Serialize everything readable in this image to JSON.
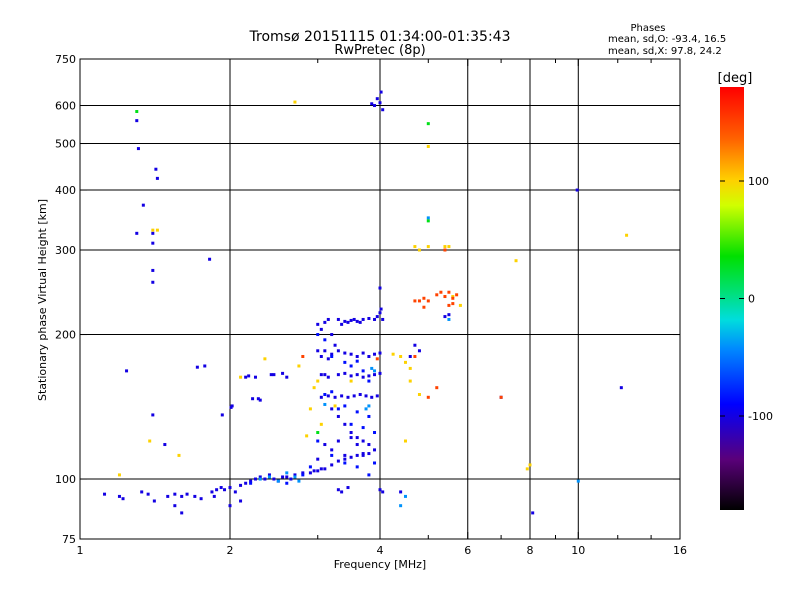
{
  "chart_data": {
    "type": "scatter",
    "title": "Tromsø 20151115 01:34:00-01:35:43",
    "subtitle": "RwPretec (8p)",
    "xlabel": "Frequency [MHz]",
    "ylabel": "Stationary phase Virtual Height [km]",
    "x_scale": "log2",
    "y_scale": "log",
    "xlim": [
      1,
      16
    ],
    "ylim": [
      75,
      750
    ],
    "x_ticks": [
      1,
      2,
      4,
      6,
      8,
      10,
      16
    ],
    "x_minor_ticks": [
      3,
      5,
      7,
      9,
      12,
      14
    ],
    "y_ticks": [
      75,
      100,
      200,
      300,
      400,
      500,
      600,
      750
    ],
    "x_grid": [
      2,
      4,
      6,
      8,
      10
    ],
    "y_grid": [
      100,
      200,
      300,
      400,
      500,
      600
    ],
    "grid": true,
    "phases_box": {
      "title": "Phases",
      "line1": "mean, sd,O:  -93.4, 16.5",
      "line2": "mean, sd,X:  97.8, 24.2"
    },
    "colorbar": {
      "label": "[deg]",
      "range": [
        -180,
        180
      ],
      "ticks": [
        -100,
        0,
        100
      ],
      "tick_labels": [
        "-100",
        "0",
        "100"
      ],
      "colormap": "rainbow"
    },
    "series": [
      {
        "color_phase": -100,
        "points": [
          [
            1.12,
            93
          ],
          [
            1.2,
            92
          ],
          [
            1.22,
            91
          ],
          [
            1.33,
            94
          ],
          [
            1.37,
            93
          ],
          [
            1.41,
            90
          ],
          [
            1.5,
            92
          ],
          [
            1.55,
            93
          ],
          [
            1.6,
            92
          ],
          [
            1.64,
            93
          ],
          [
            1.7,
            92
          ],
          [
            1.75,
            91
          ],
          [
            1.84,
            94
          ],
          [
            1.86,
            92
          ],
          [
            1.88,
            95
          ],
          [
            1.92,
            96
          ],
          [
            1.95,
            95
          ],
          [
            2.0,
            96
          ],
          [
            2.05,
            94
          ],
          [
            2.1,
            97
          ],
          [
            2.15,
            98
          ],
          [
            2.2,
            99
          ],
          [
            2.25,
            100
          ],
          [
            2.3,
            101
          ],
          [
            2.35,
            100
          ],
          [
            2.4,
            102
          ],
          [
            2.45,
            100
          ],
          [
            2.5,
            99
          ],
          [
            2.55,
            101
          ],
          [
            2.6,
            101
          ],
          [
            2.65,
            100
          ],
          [
            2.7,
            102
          ],
          [
            2.8,
            103
          ],
          [
            2.9,
            103
          ],
          [
            2.95,
            104
          ],
          [
            3.0,
            104
          ],
          [
            3.05,
            105
          ],
          [
            3.1,
            105
          ],
          [
            3.2,
            107
          ],
          [
            3.3,
            109
          ],
          [
            3.4,
            110
          ],
          [
            3.5,
            111
          ],
          [
            3.6,
            112
          ],
          [
            3.7,
            113
          ],
          [
            3.8,
            113
          ],
          [
            1.24,
            168
          ],
          [
            1.3,
            558
          ],
          [
            1.31,
            488
          ],
          [
            1.34,
            372
          ],
          [
            1.3,
            325
          ],
          [
            1.4,
            325
          ],
          [
            1.4,
            310
          ],
          [
            1.4,
            272
          ],
          [
            1.4,
            257
          ],
          [
            1.42,
            442
          ],
          [
            1.43,
            423
          ],
          [
            1.4,
            136
          ],
          [
            1.48,
            118
          ],
          [
            1.82,
            287
          ],
          [
            1.72,
            171
          ],
          [
            1.78,
            172
          ],
          [
            1.93,
            136
          ],
          [
            2.01,
            141
          ],
          [
            2.02,
            142
          ],
          [
            2.15,
            163
          ],
          [
            2.18,
            164
          ],
          [
            2.25,
            163
          ],
          [
            2.22,
            147
          ],
          [
            2.28,
            147
          ],
          [
            2.3,
            146
          ],
          [
            2.42,
            165
          ],
          [
            2.45,
            165
          ],
          [
            2.55,
            166
          ],
          [
            2.6,
            163
          ],
          [
            3.0,
            210
          ],
          [
            3.05,
            205
          ],
          [
            3.1,
            212
          ],
          [
            3.15,
            215
          ],
          [
            3.2,
            200
          ],
          [
            3.25,
            190
          ],
          [
            3.3,
            215
          ],
          [
            3.35,
            210
          ],
          [
            3.4,
            213
          ],
          [
            3.45,
            212
          ],
          [
            3.5,
            214
          ],
          [
            3.55,
            215
          ],
          [
            3.6,
            213
          ],
          [
            3.65,
            212
          ],
          [
            3.7,
            215
          ],
          [
            3.8,
            216
          ],
          [
            3.9,
            215
          ],
          [
            3.95,
            218
          ],
          [
            4.0,
            222
          ],
          [
            4.02,
            226
          ],
          [
            4.05,
            215
          ],
          [
            4.0,
            250
          ],
          [
            3.0,
            185
          ],
          [
            3.05,
            180
          ],
          [
            3.1,
            185
          ],
          [
            3.15,
            178
          ],
          [
            3.2,
            182
          ],
          [
            3.3,
            185
          ],
          [
            3.4,
            183
          ],
          [
            3.5,
            182
          ],
          [
            3.6,
            180
          ],
          [
            3.7,
            183
          ],
          [
            3.8,
            180
          ],
          [
            3.9,
            182
          ],
          [
            4.0,
            183
          ],
          [
            3.05,
            165
          ],
          [
            3.1,
            165
          ],
          [
            3.15,
            163
          ],
          [
            3.3,
            165
          ],
          [
            3.4,
            166
          ],
          [
            3.5,
            164
          ],
          [
            3.6,
            165
          ],
          [
            3.7,
            163
          ],
          [
            3.8,
            164
          ],
          [
            3.9,
            165
          ],
          [
            4.0,
            166
          ],
          [
            3.05,
            148
          ],
          [
            3.15,
            149
          ],
          [
            3.25,
            148
          ],
          [
            3.35,
            149
          ],
          [
            3.45,
            148
          ],
          [
            3.55,
            149
          ],
          [
            3.65,
            150
          ],
          [
            3.75,
            149
          ],
          [
            3.85,
            148
          ],
          [
            3.95,
            149
          ],
          [
            3.2,
            140
          ],
          [
            3.3,
            135
          ],
          [
            3.4,
            130
          ],
          [
            3.5,
            125
          ],
          [
            3.6,
            122
          ],
          [
            3.7,
            120
          ],
          [
            3.8,
            118
          ],
          [
            3.9,
            115
          ],
          [
            3.0,
            110
          ],
          [
            3.1,
            118
          ],
          [
            3.2,
            115
          ],
          [
            3.3,
            120
          ],
          [
            3.4,
            112
          ],
          [
            3.5,
            122
          ],
          [
            3.6,
            118
          ],
          [
            3.7,
            112
          ],
          [
            4.0,
            608
          ],
          [
            3.95,
            620
          ],
          [
            3.9,
            600
          ],
          [
            4.02,
            640
          ],
          [
            4.05,
            588
          ],
          [
            3.85,
            605
          ],
          [
            4.0,
            95
          ],
          [
            4.05,
            94
          ],
          [
            3.3,
            95
          ],
          [
            3.35,
            94
          ],
          [
            3.45,
            96
          ],
          [
            4.4,
            94
          ],
          [
            4.6,
            180
          ],
          [
            4.7,
            190
          ],
          [
            4.8,
            185
          ],
          [
            5.5,
            220
          ],
          [
            5.4,
            218
          ],
          [
            7.0,
            148
          ],
          [
            8.1,
            85
          ],
          [
            9.95,
            400
          ],
          [
            12.2,
            155
          ],
          [
            1.6,
            85
          ],
          [
            1.55,
            88
          ],
          [
            2.0,
            88
          ],
          [
            2.1,
            90
          ]
        ]
      },
      {
        "color_phase": -85,
        "points": [
          [
            3.0,
            200
          ],
          [
            3.1,
            195
          ],
          [
            3.2,
            180
          ],
          [
            3.4,
            175
          ],
          [
            3.5,
            172
          ],
          [
            3.6,
            176
          ],
          [
            3.7,
            168
          ],
          [
            3.8,
            160
          ],
          [
            3.1,
            150
          ],
          [
            3.2,
            152
          ],
          [
            3.3,
            140
          ],
          [
            3.4,
            142
          ],
          [
            3.5,
            130
          ],
          [
            3.6,
            138
          ],
          [
            3.7,
            128
          ],
          [
            3.8,
            135
          ],
          [
            3.9,
            125
          ],
          [
            3.0,
            120
          ],
          [
            3.2,
            112
          ],
          [
            3.4,
            108
          ],
          [
            3.6,
            106
          ],
          [
            3.8,
            102
          ],
          [
            3.9,
            108
          ],
          [
            2.9,
            106
          ],
          [
            2.8,
            102
          ],
          [
            2.6,
            98
          ],
          [
            2.2,
            98
          ]
        ]
      },
      {
        "color_phase": -40,
        "points": [
          [
            2.3,
            100
          ],
          [
            2.4,
            101
          ],
          [
            2.5,
            99
          ],
          [
            2.6,
            103
          ],
          [
            2.7,
            101
          ],
          [
            2.75,
            99
          ],
          [
            3.85,
            170
          ],
          [
            3.9,
            168
          ],
          [
            3.75,
            140
          ],
          [
            3.8,
            142
          ],
          [
            4.4,
            88
          ],
          [
            4.5,
            92
          ],
          [
            5.5,
            215
          ],
          [
            10.0,
            99
          ],
          [
            5.0,
            350
          ],
          [
            3.1,
            143
          ]
        ]
      },
      {
        "color_phase": 30,
        "points": [
          [
            1.3,
            583
          ],
          [
            5.0,
            550
          ],
          [
            5.0,
            345
          ],
          [
            3.0,
            125
          ]
        ]
      },
      {
        "color_phase": 100,
        "points": [
          [
            1.2,
            102
          ],
          [
            1.38,
            120
          ],
          [
            1.4,
            330
          ],
          [
            1.43,
            330
          ],
          [
            1.58,
            112
          ],
          [
            2.1,
            163
          ],
          [
            2.35,
            178
          ],
          [
            2.7,
            610
          ],
          [
            2.75,
            172
          ],
          [
            2.85,
            123
          ],
          [
            2.9,
            140
          ],
          [
            2.95,
            155
          ],
          [
            3.0,
            160
          ],
          [
            3.05,
            130
          ],
          [
            3.25,
            142
          ],
          [
            3.5,
            160
          ],
          [
            4.25,
            182
          ],
          [
            4.4,
            180
          ],
          [
            4.5,
            175
          ],
          [
            4.6,
            160
          ],
          [
            4.7,
            305
          ],
          [
            4.8,
            300
          ],
          [
            5.0,
            493
          ],
          [
            5.0,
            305
          ],
          [
            5.4,
            305
          ],
          [
            5.5,
            305
          ],
          [
            5.6,
            240
          ],
          [
            5.8,
            230
          ],
          [
            7.5,
            285
          ],
          [
            7.9,
            105
          ],
          [
            8.0,
            107
          ],
          [
            12.5,
            322
          ],
          [
            4.8,
            150
          ],
          [
            4.6,
            170
          ],
          [
            4.5,
            120
          ]
        ]
      },
      {
        "color_phase": 150,
        "points": [
          [
            4.7,
            235
          ],
          [
            4.8,
            235
          ],
          [
            4.9,
            238
          ],
          [
            5.0,
            235
          ],
          [
            5.2,
            242
          ],
          [
            5.3,
            245
          ],
          [
            5.4,
            240
          ],
          [
            5.5,
            245
          ],
          [
            5.6,
            238
          ],
          [
            5.7,
            242
          ],
          [
            5.5,
            230
          ],
          [
            4.9,
            228
          ],
          [
            5.6,
            232
          ],
          [
            3.95,
            178
          ],
          [
            4.7,
            180
          ],
          [
            5.2,
            155
          ],
          [
            5.0,
            148
          ],
          [
            2.8,
            180
          ],
          [
            7.0,
            148
          ],
          [
            5.4,
            300
          ]
        ]
      }
    ]
  }
}
